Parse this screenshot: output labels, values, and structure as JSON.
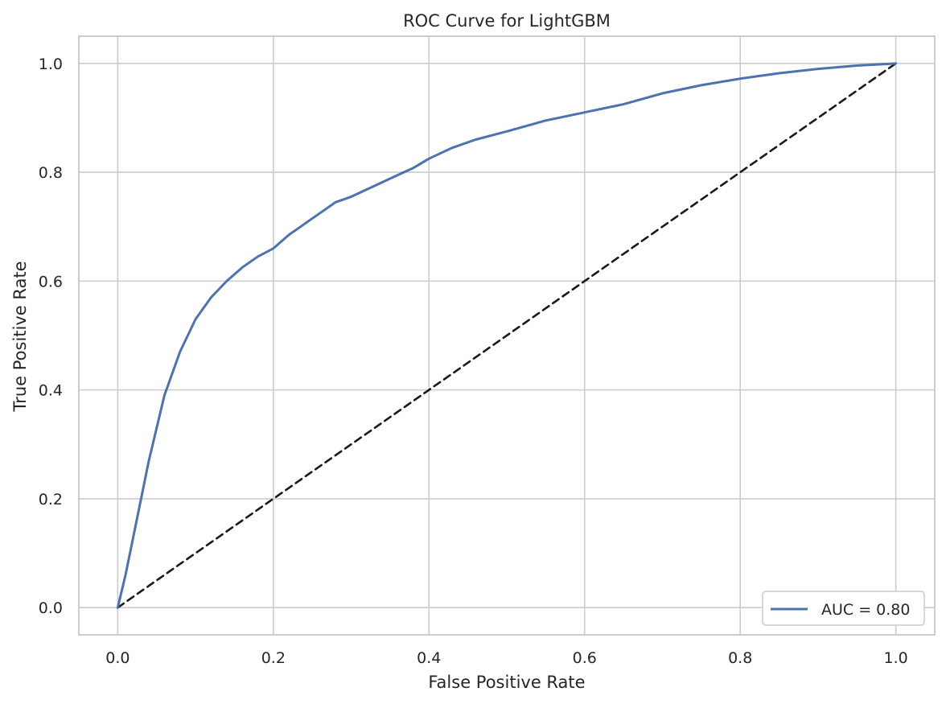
{
  "chart_data": {
    "type": "line",
    "title": "ROC Curve for LightGBM",
    "xlabel": "False Positive Rate",
    "ylabel": "True Positive Rate",
    "xlim": [
      -0.05,
      1.05
    ],
    "ylim": [
      -0.05,
      1.05
    ],
    "xticks": [
      0.0,
      0.2,
      0.4,
      0.6,
      0.8,
      1.0
    ],
    "yticks": [
      0.0,
      0.2,
      0.4,
      0.6,
      0.8,
      1.0
    ],
    "xtick_labels": [
      "0.0",
      "0.2",
      "0.4",
      "0.6",
      "0.8",
      "1.0"
    ],
    "ytick_labels": [
      "0.0",
      "0.2",
      "0.4",
      "0.6",
      "0.8",
      "1.0"
    ],
    "grid": true,
    "legend_position": "lower-right",
    "series": [
      {
        "name": "AUC = 0.80",
        "color": "#4c72b0",
        "style": "solid",
        "x": [
          0.0,
          0.005,
          0.01,
          0.02,
          0.03,
          0.04,
          0.05,
          0.06,
          0.07,
          0.08,
          0.09,
          0.1,
          0.12,
          0.14,
          0.16,
          0.18,
          0.2,
          0.22,
          0.25,
          0.28,
          0.3,
          0.33,
          0.36,
          0.38,
          0.4,
          0.43,
          0.46,
          0.5,
          0.55,
          0.6,
          0.65,
          0.7,
          0.75,
          0.8,
          0.85,
          0.9,
          0.95,
          1.0
        ],
        "y": [
          0.0,
          0.03,
          0.06,
          0.13,
          0.2,
          0.27,
          0.33,
          0.39,
          0.43,
          0.47,
          0.5,
          0.53,
          0.57,
          0.6,
          0.625,
          0.645,
          0.66,
          0.685,
          0.715,
          0.745,
          0.755,
          0.775,
          0.795,
          0.808,
          0.825,
          0.845,
          0.86,
          0.875,
          0.895,
          0.91,
          0.925,
          0.945,
          0.96,
          0.972,
          0.982,
          0.99,
          0.996,
          1.0
        ]
      },
      {
        "name": "",
        "color": "#1a1a1a",
        "style": "dashed",
        "x": [
          0.0,
          1.0
        ],
        "y": [
          0.0,
          1.0
        ]
      }
    ],
    "legend": {
      "label": "AUC = 0.80",
      "color": "#4c72b0"
    }
  }
}
